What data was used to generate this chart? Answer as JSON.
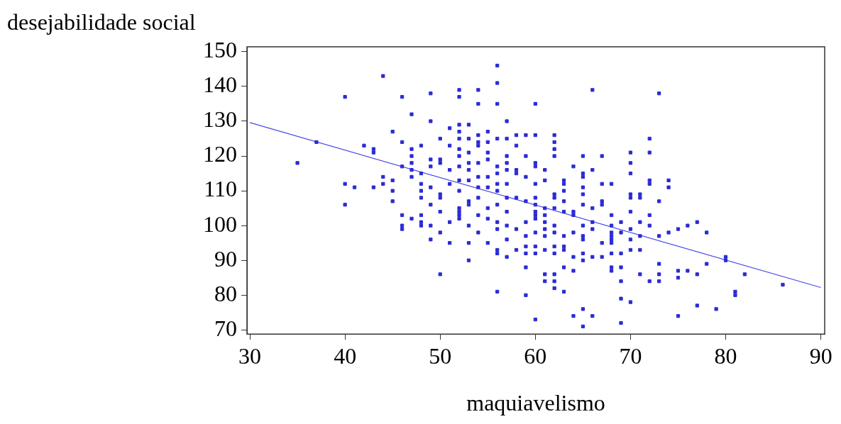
{
  "chart_data": {
    "type": "scatter",
    "xlabel": "maquiavelismo",
    "ylabel": "desejabilidade social",
    "xlim": [
      29.7,
      90.4
    ],
    "ylim": [
      68.8,
      151.4
    ],
    "xticks": [
      30,
      40,
      50,
      60,
      70,
      80,
      90
    ],
    "yticks": [
      70,
      80,
      90,
      100,
      110,
      120,
      130,
      140,
      150
    ],
    "grid": false,
    "legend": false,
    "series": [
      {
        "color": "#2b2bd6",
        "marker": "square",
        "x": [
          35,
          37,
          40,
          40,
          40,
          41,
          42,
          43,
          43,
          43,
          44,
          44,
          44,
          45,
          45,
          45,
          45,
          46,
          46,
          46,
          46,
          46,
          46,
          47,
          47,
          47,
          47,
          47,
          47,
          47,
          48,
          48,
          48,
          48,
          48,
          48,
          48,
          48,
          49,
          49,
          49,
          49,
          49,
          49,
          49,
          49,
          50,
          50,
          50,
          50,
          50,
          50,
          50,
          50,
          51,
          51,
          51,
          51,
          51,
          51,
          52,
          52,
          52,
          52,
          52,
          52,
          52,
          52,
          52,
          52,
          52,
          52,
          52,
          52,
          53,
          53,
          53,
          53,
          53,
          53,
          53,
          53,
          53,
          53,
          53,
          54,
          54,
          54,
          54,
          54,
          54,
          54,
          54,
          54,
          54,
          54,
          55,
          55,
          55,
          55,
          55,
          55,
          55,
          55,
          55,
          56,
          56,
          56,
          56,
          56,
          56,
          56,
          56,
          56,
          56,
          56,
          56,
          56,
          56,
          57,
          57,
          57,
          57,
          57,
          57,
          57,
          57,
          57,
          57,
          57,
          58,
          58,
          58,
          58,
          58,
          58,
          58,
          59,
          59,
          59,
          59,
          59,
          59,
          59,
          59,
          59,
          59,
          60,
          60,
          60,
          60,
          60,
          60,
          60,
          60,
          60,
          60,
          60,
          60,
          60,
          60,
          61,
          61,
          61,
          61,
          61,
          61,
          61,
          61,
          61,
          61,
          62,
          62,
          62,
          62,
          62,
          62,
          62,
          62,
          62,
          62,
          62,
          62,
          62,
          62,
          63,
          63,
          63,
          63,
          63,
          63,
          63,
          63,
          63,
          63,
          64,
          64,
          64,
          64,
          64,
          64,
          64,
          65,
          65,
          65,
          65,
          65,
          65,
          65,
          65,
          65,
          65,
          65,
          65,
          65,
          66,
          66,
          66,
          66,
          66,
          66,
          66,
          67,
          67,
          67,
          67,
          67,
          67,
          68,
          68,
          68,
          68,
          68,
          68,
          68,
          68,
          68,
          68,
          69,
          69,
          69,
          69,
          69,
          69,
          69,
          70,
          70,
          70,
          70,
          70,
          70,
          70,
          70,
          70,
          70,
          71,
          71,
          71,
          71,
          71,
          71,
          72,
          72,
          72,
          72,
          72,
          72,
          72,
          73,
          73,
          73,
          73,
          73,
          73,
          74,
          74,
          74,
          75,
          75,
          75,
          75,
          76,
          76,
          77,
          77,
          77,
          78,
          78,
          79,
          80,
          80,
          81,
          81,
          82,
          86
        ],
        "values": [
          118,
          124,
          137,
          112,
          106,
          111,
          123,
          122,
          121,
          111,
          143,
          114,
          112,
          127,
          113,
          110,
          107,
          137,
          124,
          117,
          103,
          100,
          99,
          132,
          122,
          120,
          118,
          116,
          114,
          102,
          123,
          115,
          112,
          110,
          108,
          103,
          101,
          100,
          138,
          130,
          119,
          117,
          111,
          106,
          100,
          96,
          125,
          119,
          118,
          109,
          108,
          104,
          98,
          86,
          128,
          123,
          116,
          112,
          101,
          95,
          139,
          137,
          129,
          127,
          125,
          122,
          120,
          117,
          113,
          110,
          105,
          104,
          103,
          102,
          129,
          125,
          121,
          118,
          116,
          113,
          107,
          106,
          100,
          95,
          90,
          139,
          135,
          126,
          124,
          123,
          118,
          114,
          111,
          108,
          103,
          98,
          127,
          124,
          121,
          119,
          114,
          111,
          105,
          102,
          95,
          146,
          141,
          135,
          125,
          117,
          115,
          112,
          110,
          106,
          101,
          99,
          93,
          92,
          81,
          130,
          125,
          120,
          118,
          116,
          112,
          108,
          104,
          100,
          96,
          91,
          126,
          123,
          116,
          115,
          108,
          99,
          93,
          126,
          120,
          114,
          107,
          101,
          97,
          94,
          92,
          88,
          80,
          135,
          126,
          118,
          117,
          112,
          108,
          106,
          104,
          103,
          102,
          98,
          94,
          92,
          73,
          116,
          113,
          105,
          103,
          101,
          99,
          97,
          93,
          86,
          84,
          126,
          124,
          122,
          120,
          109,
          108,
          105,
          100,
          98,
          94,
          92,
          86,
          84,
          82,
          113,
          112,
          110,
          107,
          104,
          97,
          94,
          93,
          88,
          81,
          117,
          104,
          103,
          98,
          91,
          87,
          74,
          120,
          115,
          114,
          111,
          109,
          106,
          100,
          97,
          96,
          92,
          90,
          76,
          71,
          139,
          116,
          105,
          101,
          99,
          91,
          74,
          120,
          112,
          107,
          106,
          95,
          91,
          112,
          103,
          100,
          98,
          97,
          96,
          95,
          92,
          88,
          87,
          101,
          98,
          92,
          88,
          84,
          79,
          72,
          121,
          118,
          115,
          109,
          108,
          104,
          99,
          96,
          93,
          78,
          109,
          108,
          101,
          97,
          93,
          86,
          125,
          121,
          113,
          112,
          103,
          100,
          84,
          138,
          107,
          97,
          89,
          86,
          84,
          113,
          111,
          98,
          99,
          87,
          85,
          74,
          100,
          87,
          101,
          86,
          77,
          98,
          89,
          76,
          91,
          90,
          81,
          80,
          86,
          83
        ]
      },
      {
        "type": "line",
        "marker": "none",
        "color": "#4a4ae6",
        "x": [
          30,
          90
        ],
        "values": [
          129.6,
          82.2
        ]
      }
    ]
  }
}
